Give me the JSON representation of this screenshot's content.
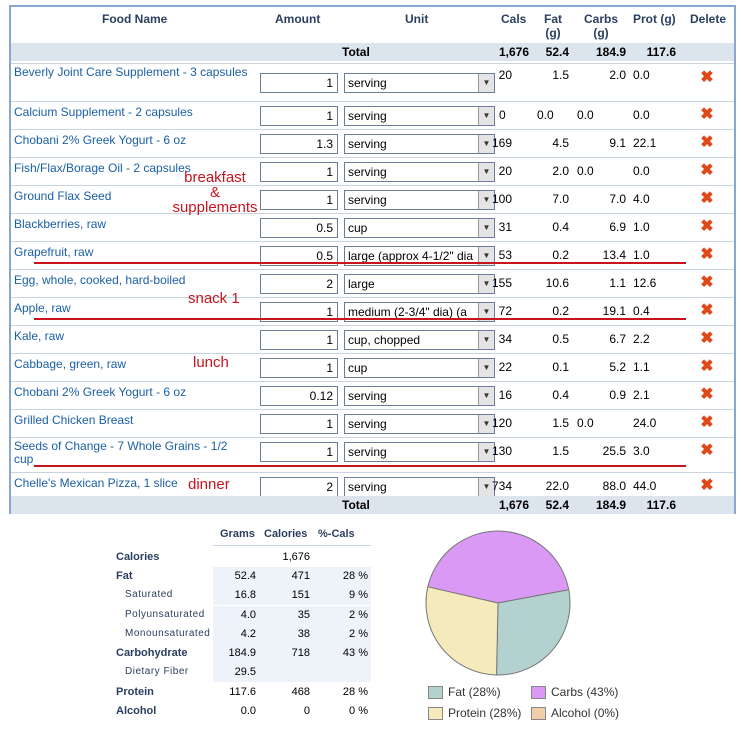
{
  "headers": {
    "food": "Food Name",
    "amount": "Amount",
    "unit": "Unit",
    "cals": "Cals",
    "fat": "Fat\n(g)",
    "carbs": "Carbs\n(g)",
    "prot": "Prot (g)",
    "del": "Delete"
  },
  "total_label": "Total",
  "totals": {
    "cals": "1,676",
    "fat": "52.4",
    "carbs": "184.9",
    "prot": "117.6"
  },
  "rows": [
    {
      "name": "Beverly Joint Care Supplement - 3 capsules",
      "amount": "1",
      "unit": "serving",
      "cals": "20",
      "fat": "1.5",
      "carbs": "2.0",
      "prot": "0.0"
    },
    {
      "name": "Calcium Supplement - 2 capsules",
      "amount": "1",
      "unit": "serving",
      "cals": "0",
      "fat": "0.0",
      "carbs": "0.0",
      "prot": "0.0"
    },
    {
      "name": "Chobani 2% Greek Yogurt - 6 oz",
      "amount": "1.3",
      "unit": "serving",
      "cals": "169",
      "fat": "4.5",
      "carbs": "9.1",
      "prot": "22.1"
    },
    {
      "name": "Fish/Flax/Borage Oil - 2 capsules",
      "amount": "1",
      "unit": "serving",
      "cals": "20",
      "fat": "2.0",
      "carbs": "0.0",
      "prot": "0.0"
    },
    {
      "name": "Ground Flax Seed",
      "amount": "1",
      "unit": "serving",
      "cals": "100",
      "fat": "7.0",
      "carbs": "7.0",
      "prot": "4.0"
    },
    {
      "name": "Blackberries, raw",
      "amount": "0.5",
      "unit": "cup",
      "cals": "31",
      "fat": "0.4",
      "carbs": "6.9",
      "prot": "1.0"
    },
    {
      "name": "Grapefruit, raw",
      "amount": "0.5",
      "unit": "large (approx 4-1/2\" dia",
      "cals": "53",
      "fat": "0.2",
      "carbs": "13.4",
      "prot": "1.0"
    },
    {
      "name": "Egg, whole, cooked, hard-boiled",
      "amount": "2",
      "unit": "large",
      "cals": "155",
      "fat": "10.6",
      "carbs": "1.1",
      "prot": "12.6"
    },
    {
      "name": "Apple, raw",
      "amount": "1",
      "unit": "medium (2-3/4\" dia) (a",
      "cals": "72",
      "fat": "0.2",
      "carbs": "19.1",
      "prot": "0.4"
    },
    {
      "name": "Kale, raw",
      "amount": "1",
      "unit": "cup, chopped",
      "cals": "34",
      "fat": "0.5",
      "carbs": "6.7",
      "prot": "2.2"
    },
    {
      "name": "Cabbage, green, raw",
      "amount": "1",
      "unit": "cup",
      "cals": "22",
      "fat": "0.1",
      "carbs": "5.2",
      "prot": "1.1"
    },
    {
      "name": "Chobani 2% Greek Yogurt - 6 oz",
      "amount": "0.12",
      "unit": "serving",
      "cals": "16",
      "fat": "0.4",
      "carbs": "0.9",
      "prot": "2.1"
    },
    {
      "name": "Grilled Chicken Breast",
      "amount": "1",
      "unit": "serving",
      "cals": "120",
      "fat": "1.5",
      "carbs": "0.0",
      "prot": "24.0"
    },
    {
      "name": "Seeds of Change - 7 Whole Grains - 1/2 cup",
      "amount": "1",
      "unit": "serving",
      "cals": "130",
      "fat": "1.5",
      "carbs": "25.5",
      "prot": "3.0"
    },
    {
      "name": "Chelle's Mexican Pizza, 1 slice",
      "amount": "2",
      "unit": "serving",
      "cals": "734",
      "fat": "22.0",
      "carbs": "88.0",
      "prot": "44.0"
    }
  ],
  "annotations": {
    "breakfast": "breakfast\n&\nsupplements",
    "snack": "snack 1",
    "lunch": "lunch",
    "dinner": "dinner"
  },
  "nutrition": {
    "headers": {
      "grams": "Grams",
      "calories": "Calories",
      "pct": "%-Cals"
    },
    "rows": [
      {
        "label": "Calories",
        "grams": "",
        "cal": "1,676",
        "pct": ""
      },
      {
        "label": "Fat",
        "grams": "52.4",
        "cal": "471",
        "pct": "28 %"
      },
      {
        "label": "Saturated",
        "grams": "16.8",
        "cal": "151",
        "pct": "9 %"
      },
      {
        "label": "Polyunsaturated",
        "grams": "4.0",
        "cal": "35",
        "pct": "2 %"
      },
      {
        "label": "Monounsaturated",
        "grams": "4.2",
        "cal": "38",
        "pct": "2 %"
      },
      {
        "label": "Carbohydrate",
        "grams": "184.9",
        "cal": "718",
        "pct": "43 %"
      },
      {
        "label": "Dietary Fiber",
        "grams": "29.5",
        "cal": "",
        "pct": ""
      },
      {
        "label": "Protein",
        "grams": "117.6",
        "cal": "468",
        "pct": "28 %"
      },
      {
        "label": "Alcohol",
        "grams": "0.0",
        "cal": "0",
        "pct": "0 %"
      }
    ]
  },
  "chart_data": {
    "type": "pie",
    "slices": [
      {
        "label": "Fat (28%)",
        "value": 28,
        "color": "#b3d1cf"
      },
      {
        "label": "Carbs (43%)",
        "value": 43,
        "color": "#da99f5"
      },
      {
        "label": "Protein (28%)",
        "value": 28,
        "color": "#f5eabb"
      },
      {
        "label": "Alcohol (0%)",
        "value": 0,
        "color": "#f0cfa8"
      }
    ]
  }
}
